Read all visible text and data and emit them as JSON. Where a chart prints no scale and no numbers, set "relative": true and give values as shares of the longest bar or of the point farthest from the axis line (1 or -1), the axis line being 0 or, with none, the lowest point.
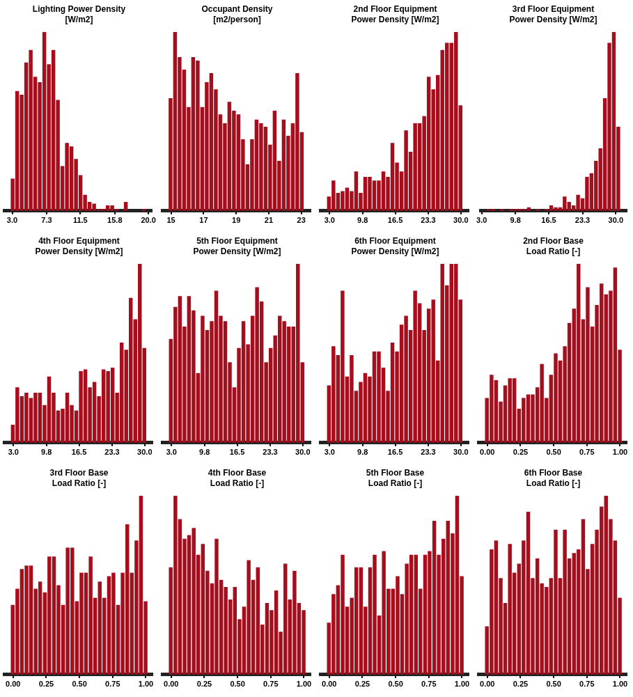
{
  "chart_data": [
    {
      "type": "bar",
      "title": "Lighting Power Density\n[W/m2]",
      "relative": true,
      "color": "#a50f1d",
      "xlim": [
        2.0,
        20.4
      ],
      "xticks": [
        {
          "value": 3,
          "label": "3.0"
        },
        {
          "value": 7.3,
          "label": "7.3"
        },
        {
          "value": 11.5,
          "label": "11.5"
        },
        {
          "value": 15.8,
          "label": "15.8"
        },
        {
          "value": 20,
          "label": "20.0"
        }
      ],
      "x": [
        3.053,
        3.618,
        4.183,
        4.748,
        5.313,
        5.878,
        6.443,
        7.008,
        7.573,
        8.138,
        8.703,
        9.268,
        9.833,
        10.398,
        10.963,
        11.528,
        12.093,
        12.658,
        13.223,
        13.788,
        14.353,
        14.918,
        15.483,
        16.048,
        16.613,
        17.178,
        17.743,
        18.308,
        18.873,
        19.438
      ],
      "values": [
        0.18,
        0.67,
        0.65,
        0.83,
        0.9,
        0.75,
        0.72,
        1.0,
        0.82,
        0.9,
        0.62,
        0.25,
        0.38,
        0.36,
        0.29,
        0.2,
        0.09,
        0.05,
        0.04,
        0.01,
        0.01,
        0.03,
        0.03,
        0.01,
        0,
        0.05,
        0,
        0,
        0,
        0.01
      ]
    },
    {
      "type": "bar",
      "title": "Occupant Density\n[m2/person]",
      "relative": true,
      "color": "#a50f1d",
      "xlim": [
        14.46,
        23.57
      ],
      "xticks": [
        {
          "value": 15,
          "label": "15"
        },
        {
          "value": 17,
          "label": "17"
        },
        {
          "value": 19,
          "label": "19"
        },
        {
          "value": 21,
          "label": "21"
        },
        {
          "value": 23,
          "label": "23"
        }
      ],
      "x": [
        14.969,
        15.247,
        15.525,
        15.803,
        16.081,
        16.359,
        16.637,
        16.915,
        17.193,
        17.471,
        17.749,
        18.027,
        18.305,
        18.583,
        18.861,
        19.139,
        19.417,
        19.695,
        19.973,
        20.251,
        20.529,
        20.807,
        21.085,
        21.363,
        21.641,
        21.919,
        22.197,
        22.475,
        22.753,
        23.031
      ],
      "values": [
        0.63,
        1.0,
        0.86,
        0.79,
        0.58,
        0.86,
        0.84,
        0.58,
        0.72,
        0.77,
        0.68,
        0.54,
        0.49,
        0.61,
        0.56,
        0.54,
        0.4,
        0.26,
        0.4,
        0.51,
        0.49,
        0.47,
        0.37,
        0.56,
        0.28,
        0.51,
        0.42,
        0.49,
        0.77,
        0.44
      ]
    },
    {
      "type": "bar",
      "title": "2nd Floor Equipment\nPower Density [W/m2]",
      "relative": true,
      "color": "#a50f1d",
      "xlim": [
        1.1,
        31.6
      ],
      "xticks": [
        {
          "value": 3,
          "label": "3.0"
        },
        {
          "value": 9.8,
          "label": "9.8"
        },
        {
          "value": 16.5,
          "label": "16.5"
        },
        {
          "value": 23.3,
          "label": "23.3"
        },
        {
          "value": 30,
          "label": "30.0"
        }
      ],
      "x": [
        2.867,
        3.8,
        4.733,
        5.666,
        6.599,
        7.532,
        8.465,
        9.398,
        10.331,
        11.264,
        12.197,
        13.13,
        14.063,
        14.996,
        15.929,
        16.862,
        17.795,
        18.728,
        19.661,
        20.594,
        21.527,
        22.46,
        23.393,
        24.326,
        25.259,
        26.192,
        27.125,
        28.058,
        28.991,
        29.924
      ],
      "values": [
        0.08,
        0.17,
        0.1,
        0.11,
        0.13,
        0.11,
        0.22,
        0.1,
        0.19,
        0.19,
        0.17,
        0.17,
        0.22,
        0.19,
        0.38,
        0.27,
        0.22,
        0.45,
        0.33,
        0.49,
        0.49,
        0.53,
        0.75,
        0.68,
        0.76,
        0.9,
        0.94,
        0.94,
        1.0,
        0.59
      ]
    },
    {
      "type": "bar",
      "title": "3rd Floor Equipment\nPower Density [W/m2]",
      "relative": true,
      "color": "#a50f1d",
      "xlim": [
        2.8,
        32.2
      ],
      "xticks": [
        {
          "value": 3,
          "label": "3.0"
        },
        {
          "value": 9.8,
          "label": "9.8"
        },
        {
          "value": 16.5,
          "label": "16.5"
        },
        {
          "value": 23.3,
          "label": "23.3"
        },
        {
          "value": 30,
          "label": "30.0"
        }
      ],
      "x": [
        4.4,
        5.3,
        6.2,
        7.1,
        8.0,
        8.9,
        9.8,
        10.7,
        11.6,
        12.5,
        13.4,
        14.3,
        15.2,
        16.1,
        17.0,
        17.9,
        18.8,
        19.7,
        20.6,
        21.5,
        22.4,
        23.3,
        24.2,
        25.1,
        26.0,
        26.9,
        27.8,
        28.7,
        29.6,
        30.5
      ],
      "values": [
        0.01,
        0.01,
        0,
        0.01,
        0,
        0.01,
        0.01,
        0.01,
        0.01,
        0.02,
        0,
        0.01,
        0,
        0.01,
        0.03,
        0.02,
        0.02,
        0.08,
        0.05,
        0.03,
        0.09,
        0.07,
        0.19,
        0.21,
        0.28,
        0.35,
        0.63,
        0.94,
        1.0,
        0.47
      ]
    },
    {
      "type": "bar",
      "title": "4th Floor Equipment\nPower Density [W/m2]",
      "relative": true,
      "color": "#a50f1d",
      "xlim": [
        1.1,
        31.6
      ],
      "xticks": [
        {
          "value": 3,
          "label": "3.0"
        },
        {
          "value": 9.8,
          "label": "9.8"
        },
        {
          "value": 16.5,
          "label": "16.5"
        },
        {
          "value": 23.3,
          "label": "23.3"
        },
        {
          "value": 30,
          "label": "30.0"
        }
      ],
      "x": [
        2.867,
        3.8,
        4.733,
        5.666,
        6.599,
        7.532,
        8.465,
        9.398,
        10.331,
        11.264,
        12.197,
        13.13,
        14.063,
        14.996,
        15.929,
        16.862,
        17.795,
        18.728,
        19.661,
        20.594,
        21.527,
        22.46,
        23.393,
        24.326,
        25.259,
        26.192,
        27.125,
        28.058,
        28.991,
        29.924
      ],
      "values": [
        0.1,
        0.31,
        0.26,
        0.28,
        0.25,
        0.28,
        0.28,
        0.21,
        0.37,
        0.28,
        0.18,
        0.19,
        0.28,
        0.21,
        0.18,
        0.4,
        0.41,
        0.31,
        0.34,
        0.26,
        0.41,
        0.4,
        0.42,
        0.28,
        0.56,
        0.52,
        0.81,
        0.69,
        1.0,
        0.53
      ]
    },
    {
      "type": "bar",
      "title": "5th Floor Equipment\nPower Density [W/m2]",
      "relative": true,
      "color": "#a50f1d",
      "xlim": [
        1.1,
        31.6
      ],
      "xticks": [
        {
          "value": 3,
          "label": "3.0"
        },
        {
          "value": 9.8,
          "label": "9.8"
        },
        {
          "value": 16.5,
          "label": "16.5"
        },
        {
          "value": 23.3,
          "label": "23.3"
        },
        {
          "value": 30,
          "label": "30.0"
        }
      ],
      "x": [
        2.867,
        3.8,
        4.733,
        5.666,
        6.599,
        7.532,
        8.465,
        9.398,
        10.331,
        11.264,
        12.197,
        13.13,
        14.063,
        14.996,
        15.929,
        16.862,
        17.795,
        18.728,
        19.661,
        20.594,
        21.527,
        22.46,
        23.393,
        24.326,
        25.259,
        26.192,
        27.125,
        28.058,
        28.991,
        29.924
      ],
      "values": [
        0.58,
        0.76,
        0.82,
        0.65,
        0.82,
        0.74,
        0.39,
        0.71,
        0.63,
        0.68,
        0.85,
        0.71,
        0.68,
        0.45,
        0.31,
        0.53,
        0.68,
        0.55,
        0.71,
        0.87,
        0.79,
        0.45,
        0.53,
        0.6,
        0.71,
        0.68,
        0.65,
        0.65,
        1.0,
        0.45
      ]
    },
    {
      "type": "bar",
      "title": "6th Floor Equipment\nPower Density [W/m2]",
      "relative": true,
      "color": "#a50f1d",
      "xlim": [
        1.1,
        31.6
      ],
      "xticks": [
        {
          "value": 3,
          "label": "3.0"
        },
        {
          "value": 9.8,
          "label": "9.8"
        },
        {
          "value": 16.5,
          "label": "16.5"
        },
        {
          "value": 23.3,
          "label": "23.3"
        },
        {
          "value": 30,
          "label": "30.0"
        }
      ],
      "x": [
        2.867,
        3.8,
        4.733,
        5.666,
        6.599,
        7.532,
        8.465,
        9.398,
        10.331,
        11.264,
        12.197,
        13.13,
        14.063,
        14.996,
        15.929,
        16.862,
        17.795,
        18.728,
        19.661,
        20.594,
        21.527,
        22.46,
        23.393,
        24.326,
        25.259,
        26.192,
        27.125,
        28.058,
        28.991,
        29.924
      ],
      "values": [
        0.32,
        0.54,
        0.49,
        0.85,
        0.37,
        0.49,
        0.29,
        0.34,
        0.39,
        0.37,
        0.51,
        0.51,
        0.42,
        0.29,
        0.56,
        0.51,
        0.66,
        0.71,
        0.63,
        0.85,
        0.78,
        0.63,
        0.75,
        0.8,
        0.46,
        1.0,
        0.88,
        1.0,
        1.0,
        0.8
      ]
    },
    {
      "type": "bar",
      "title": "2nd Floor Base\nLoad Ratio [-]",
      "relative": true,
      "color": "#a50f1d",
      "xlim": [
        -0.067,
        1.05
      ],
      "xticks": [
        {
          "value": 0,
          "label": "0.00"
        },
        {
          "value": 0.25,
          "label": "0.25"
        },
        {
          "value": 0.5,
          "label": "0.50"
        },
        {
          "value": 0.75,
          "label": "0.75"
        },
        {
          "value": 1,
          "label": "1.00"
        }
      ],
      "x": [
        -0.003,
        0.032,
        0.066,
        0.101,
        0.135,
        0.17,
        0.204,
        0.239,
        0.273,
        0.308,
        0.342,
        0.377,
        0.411,
        0.446,
        0.48,
        0.515,
        0.549,
        0.584,
        0.618,
        0.653,
        0.687,
        0.722,
        0.756,
        0.791,
        0.825,
        0.86,
        0.894,
        0.929,
        0.963,
        0.998
      ],
      "values": [
        0.25,
        0.38,
        0.35,
        0.23,
        0.32,
        0.36,
        0.36,
        0.19,
        0.25,
        0.27,
        0.27,
        0.31,
        0.44,
        0.25,
        0.38,
        0.5,
        0.46,
        0.54,
        0.67,
        0.75,
        1.0,
        0.69,
        0.87,
        0.65,
        0.77,
        0.89,
        0.83,
        0.85,
        0.98,
        0.52
      ]
    },
    {
      "type": "bar",
      "title": "3rd Floor Base\nLoad Ratio [-]",
      "relative": true,
      "color": "#a50f1d",
      "xlim": [
        -0.067,
        1.05
      ],
      "xticks": [
        {
          "value": 0,
          "label": "0.00"
        },
        {
          "value": 0.25,
          "label": "0.25"
        },
        {
          "value": 0.5,
          "label": "0.50"
        },
        {
          "value": 0.75,
          "label": "0.75"
        },
        {
          "value": 1,
          "label": "1.00"
        }
      ],
      "x": [
        -0.003,
        0.032,
        0.066,
        0.101,
        0.135,
        0.17,
        0.204,
        0.239,
        0.273,
        0.308,
        0.342,
        0.377,
        0.411,
        0.446,
        0.48,
        0.515,
        0.549,
        0.584,
        0.618,
        0.653,
        0.687,
        0.722,
        0.756,
        0.791,
        0.825,
        0.86,
        0.894,
        0.929,
        0.963,
        0.998
      ],
      "values": [
        0.39,
        0.48,
        0.59,
        0.61,
        0.61,
        0.48,
        0.52,
        0.46,
        0.66,
        0.66,
        0.5,
        0.39,
        0.71,
        0.71,
        0.41,
        0.57,
        0.57,
        0.66,
        0.43,
        0.52,
        0.43,
        0.55,
        0.57,
        0.39,
        0.57,
        0.84,
        0.57,
        0.75,
        1.0,
        0.41
      ]
    },
    {
      "type": "bar",
      "title": "4th Floor Base\nLoad Ratio [-]",
      "relative": true,
      "color": "#a50f1d",
      "xlim": [
        -0.067,
        1.05
      ],
      "xticks": [
        {
          "value": 0,
          "label": "0.00"
        },
        {
          "value": 0.25,
          "label": "0.25"
        },
        {
          "value": 0.5,
          "label": "0.50"
        },
        {
          "value": 0.75,
          "label": "0.75"
        },
        {
          "value": 1,
          "label": "1.00"
        }
      ],
      "x": [
        -0.003,
        0.032,
        0.066,
        0.101,
        0.135,
        0.17,
        0.204,
        0.239,
        0.273,
        0.308,
        0.342,
        0.377,
        0.411,
        0.446,
        0.48,
        0.515,
        0.549,
        0.584,
        0.618,
        0.653,
        0.687,
        0.722,
        0.756,
        0.791,
        0.825,
        0.86,
        0.894,
        0.929,
        0.963,
        0.998
      ],
      "values": [
        0.6,
        1.0,
        0.87,
        0.76,
        0.78,
        0.82,
        0.67,
        0.73,
        0.58,
        0.51,
        0.76,
        0.53,
        0.49,
        0.42,
        0.49,
        0.31,
        0.38,
        0.64,
        0.53,
        0.6,
        0.28,
        0.4,
        0.36,
        0.47,
        0.24,
        0.62,
        0.42,
        0.58,
        0.4,
        0.36
      ]
    },
    {
      "type": "bar",
      "title": "5th Floor Base\nLoad Ratio [-]",
      "relative": true,
      "color": "#a50f1d",
      "xlim": [
        -0.067,
        1.05
      ],
      "xticks": [
        {
          "value": 0,
          "label": "0.00"
        },
        {
          "value": 0.25,
          "label": "0.25"
        },
        {
          "value": 0.5,
          "label": "0.50"
        },
        {
          "value": 0.75,
          "label": "0.75"
        },
        {
          "value": 1,
          "label": "1.00"
        }
      ],
      "x": [
        -0.003,
        0.032,
        0.066,
        0.101,
        0.135,
        0.17,
        0.204,
        0.239,
        0.273,
        0.308,
        0.342,
        0.377,
        0.411,
        0.446,
        0.48,
        0.515,
        0.549,
        0.584,
        0.618,
        0.653,
        0.687,
        0.722,
        0.756,
        0.791,
        0.825,
        0.86,
        0.894,
        0.929,
        0.963,
        0.998
      ],
      "values": [
        0.29,
        0.45,
        0.5,
        0.67,
        0.38,
        0.43,
        0.6,
        0.6,
        0.38,
        0.6,
        0.67,
        0.33,
        0.69,
        0.48,
        0.48,
        0.55,
        0.45,
        0.62,
        0.67,
        0.67,
        0.48,
        0.67,
        0.69,
        0.86,
        0.67,
        0.76,
        0.86,
        0.79,
        1.0,
        0.55
      ]
    },
    {
      "type": "bar",
      "title": "6th Floor Base\nLoad Ratio [-]",
      "relative": true,
      "color": "#a50f1d",
      "xlim": [
        -0.067,
        1.05
      ],
      "xticks": [
        {
          "value": 0,
          "label": "0.00"
        },
        {
          "value": 0.25,
          "label": "0.25"
        },
        {
          "value": 0.5,
          "label": "0.50"
        },
        {
          "value": 0.75,
          "label": "0.75"
        },
        {
          "value": 1,
          "label": "1.00"
        }
      ],
      "x": [
        -0.003,
        0.032,
        0.066,
        0.101,
        0.135,
        0.17,
        0.204,
        0.239,
        0.273,
        0.308,
        0.342,
        0.377,
        0.411,
        0.446,
        0.48,
        0.515,
        0.549,
        0.584,
        0.618,
        0.653,
        0.687,
        0.722,
        0.756,
        0.791,
        0.825,
        0.86,
        0.894,
        0.929,
        0.963,
        0.998
      ],
      "values": [
        0.27,
        0.7,
        0.75,
        0.54,
        0.4,
        0.73,
        0.57,
        0.62,
        0.75,
        0.91,
        0.54,
        0.65,
        0.51,
        0.49,
        0.54,
        0.81,
        0.54,
        0.81,
        0.65,
        0.68,
        0.7,
        0.87,
        0.59,
        0.73,
        0.81,
        0.94,
        1.0,
        0.87,
        0.75,
        0.43
      ]
    }
  ]
}
